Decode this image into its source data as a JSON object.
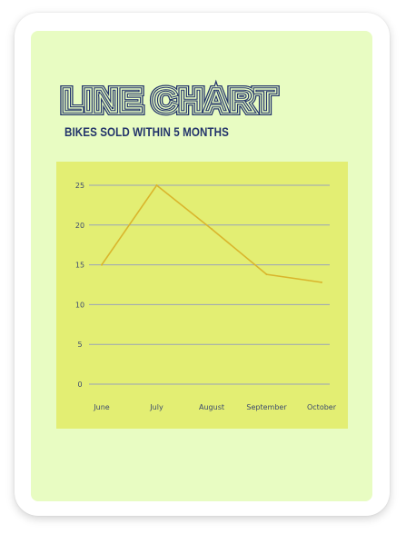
{
  "header": {
    "title": "LINE CHART",
    "subtitle": "BIKES SOLD WITHIN 5 MONTHS"
  },
  "colors": {
    "background": "#e8fcc2",
    "panel": "#e3ee73",
    "line": "#d9b52c",
    "grid": "#9aa3b8",
    "title": "#23346b"
  },
  "chart_data": {
    "type": "line",
    "categories": [
      "June",
      "July",
      "August",
      "September",
      "October"
    ],
    "series": [
      {
        "values": [
          15,
          25,
          19.5,
          13.8,
          12.8
        ]
      }
    ],
    "yticks": [
      "0",
      "5",
      "10",
      "15",
      "20",
      "25"
    ],
    "ylim": [
      0,
      25
    ],
    "grid": true,
    "legend": "none"
  }
}
